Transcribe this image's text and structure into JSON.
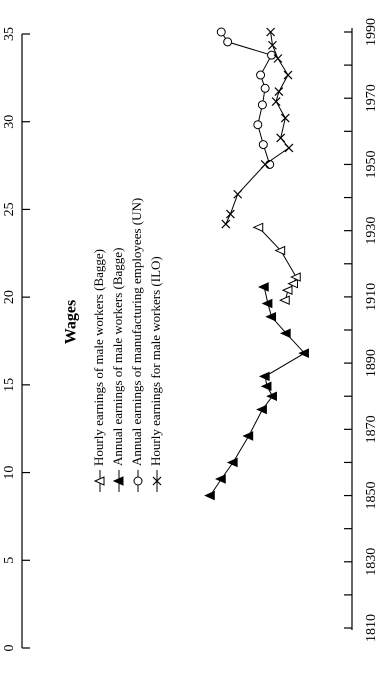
{
  "chart_data": {
    "type": "line",
    "title": "Wages",
    "orientation": "rotated-90-ccw",
    "xlabel": "",
    "ylabel": "",
    "xlim": [
      1810,
      1990
    ],
    "ylim": [
      0,
      35
    ],
    "x_ticks": [
      1810,
      1830,
      1850,
      1870,
      1890,
      1910,
      1930,
      1950,
      1970,
      1990
    ],
    "y_ticks": [
      0,
      5,
      10,
      15,
      20,
      25,
      30,
      35
    ],
    "grid": false,
    "legend_position": "top-left",
    "series": [
      {
        "name": "Hourly earnings of male workers (Bagge)",
        "marker": "open-triangle",
        "x": [
          1909,
          1912,
          1914,
          1916,
          1924,
          1931
        ],
        "y": [
          7.3,
          7.0,
          6.4,
          6.1,
          7.8,
          10.2
        ]
      },
      {
        "name": "Annual earnings of male workers (Bagge)",
        "marker": "filled-triangle",
        "x": [
          1850,
          1855,
          1860,
          1868,
          1876,
          1880,
          1883,
          1886,
          1893,
          1899,
          1904,
          1908,
          1913
        ],
        "y": [
          15.5,
          14.3,
          13.0,
          11.3,
          9.8,
          8.7,
          9.3,
          9.5,
          5.2,
          7.2,
          8.8,
          9.2,
          9.6
        ]
      },
      {
        "name": "Annual earnings of manufacturing employees (UN)",
        "marker": "open-circle",
        "x": [
          1950,
          1956,
          1962,
          1968,
          1973,
          1977,
          1983,
          1987,
          1990
        ],
        "y": [
          9.0,
          9.7,
          10.3,
          9.8,
          9.5,
          10.0,
          8.8,
          13.6,
          14.3
        ]
      },
      {
        "name": "Hourly earnings for male workers (ILO)",
        "marker": "x",
        "x": [
          1932,
          1935,
          1941,
          1950,
          1955,
          1958,
          1964,
          1969,
          1972,
          1977,
          1982,
          1986,
          1990
        ],
        "y": [
          13.8,
          13.3,
          12.5,
          9.5,
          6.9,
          7.8,
          7.3,
          8.3,
          8.0,
          7.0,
          8.1,
          8.7,
          8.9
        ]
      }
    ]
  }
}
